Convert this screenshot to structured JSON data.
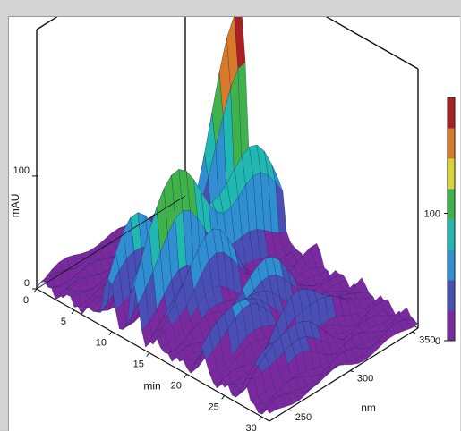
{
  "chart_data": {
    "type": "surface-3d",
    "xlabel": "min",
    "ylabel": "nm",
    "zlabel": "mAU",
    "x_ticks": [
      "0",
      "5",
      "10",
      "15",
      "20",
      "25",
      "30"
    ],
    "y_ticks": [
      "250",
      "300",
      "350"
    ],
    "z_ticks": [
      "0",
      "100"
    ],
    "colorbar_ticks": [
      "0",
      "100"
    ],
    "xlim": [
      0,
      31
    ],
    "ylim": [
      235,
      355
    ],
    "zlim": [
      0,
      230
    ],
    "colormap": [
      "#7a2a9e",
      "#4a4fb6",
      "#2f8fd0",
      "#20b8b0",
      "#3fb24a",
      "#d8d43a",
      "#d87a2a",
      "#a82020"
    ],
    "peaks": [
      {
        "time_min": 7.5,
        "wavelength_nm": 352,
        "height_mAU": 195
      },
      {
        "time_min": 9.5,
        "wavelength_nm": 258,
        "height_mAU": 80
      },
      {
        "time_min": 12.5,
        "wavelength_nm": 330,
        "height_mAU": 95
      },
      {
        "time_min": 13.0,
        "wavelength_nm": 268,
        "height_mAU": 120
      },
      {
        "time_min": 15.5,
        "wavelength_nm": 280,
        "height_mAU": 70
      },
      {
        "time_min": 20.5,
        "wavelength_nm": 292,
        "height_mAU": 55
      },
      {
        "time_min": 22.0,
        "wavelength_nm": 262,
        "height_mAU": 50
      },
      {
        "time_min": 25.0,
        "wavelength_nm": 300,
        "height_mAU": 45
      },
      {
        "time_min": 27.5,
        "wavelength_nm": 270,
        "height_mAU": 40
      }
    ]
  }
}
